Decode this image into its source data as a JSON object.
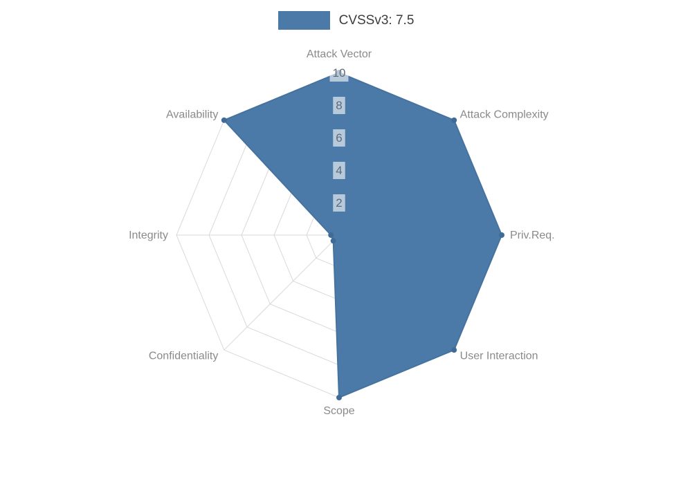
{
  "chart_data": {
    "type": "radar",
    "title": "CVSSv3: 7.5",
    "categories": [
      "Attack Vector",
      "Attack Complexity",
      "Priv.Req.",
      "User Interaction",
      "Scope",
      "Confidentiality",
      "Integrity",
      "Availability"
    ],
    "series": [
      {
        "name": "CVSSv3: 7.5",
        "values": [
          10,
          10,
          10,
          10,
          10,
          0.5,
          0.5,
          10
        ]
      }
    ],
    "rmin": 0,
    "rmax": 10,
    "ticks": [
      2,
      4,
      6,
      8,
      10
    ],
    "tick_labels": [
      "2",
      "4",
      "6",
      "8",
      "10"
    ],
    "grid": "web",
    "legend_position": "top",
    "colors": {
      "fill": "#4b7aa9",
      "line": "#46729e",
      "point": "#3f6b96",
      "grid": "#d9d9d9",
      "tick_text": "#5f6a73",
      "tick_backdrop": "rgba(255,255,255,0.6)",
      "label_text": "#8a8a8a",
      "legend_text": "#3c3c3c"
    }
  }
}
